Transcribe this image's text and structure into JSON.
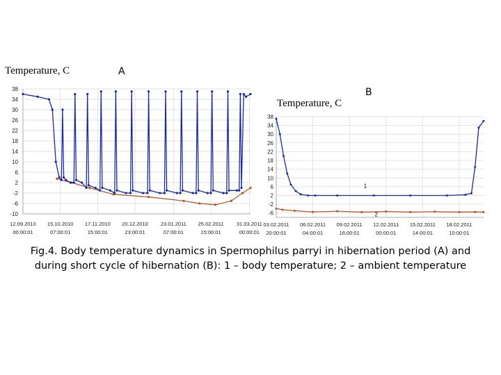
{
  "figure": {
    "ylabel_a": "Temperature, C",
    "panel_a": "A",
    "ylabel_b": "Temperature, C",
    "panel_b": "B",
    "caption": "Fig.4. Body temperature dynamics in Spermophilus parryi in hibernation period (A) and during short cycle of hibernation (B): 1 – body temperature; 2 – ambient temperature"
  },
  "colors": {
    "body": "#1a2a9c",
    "ambient": "#b0521e",
    "grid": "#d8d8d8",
    "label": "#1a1a1a"
  },
  "chart_data": [
    {
      "type": "line",
      "panel": "A",
      "ylabel": "Temperature, C",
      "ylim": [
        -10,
        38
      ],
      "yticks": [
        38,
        34,
        30,
        26,
        22,
        18,
        14,
        10,
        6,
        2,
        -2,
        -6,
        -10
      ],
      "xlim": [
        "12.09.2010",
        "01.04.2011"
      ],
      "xticks": [
        {
          "date": "12.09.2010",
          "time": "00:00:01"
        },
        {
          "date": "15.10.2010",
          "time": "07:00:01"
        },
        {
          "date": "17.11.2010",
          "time": "15:00:01"
        },
        {
          "date": "20.12.2010",
          "time": "23:00:01"
        },
        {
          "date": "23.01.2011",
          "time": "07:00:01"
        },
        {
          "date": "25.02.2011",
          "time": "15:00:01"
        },
        {
          "date": "31.03.2011",
          "time": "00:00:01"
        }
      ],
      "grid": true,
      "series": [
        {
          "key": "body",
          "x": [
            "12.09.2010",
            "25.09.2010",
            "05.10.2010",
            "08.10.2010",
            "11.10.2010",
            "14.10.2010",
            "16.10.2010",
            "17.10.2010",
            "18.10.2010",
            "20.10.2010",
            "24.10.2010",
            "27.10.2010",
            "28.10.2010",
            "29.10.2010",
            "03.11.2010",
            "07.11.2010",
            "08.11.2010",
            "09.11.2010",
            "15.11.2010",
            "19.11.2010",
            "20.11.2010",
            "21.11.2010",
            "28.11.2010",
            "02.12.2010",
            "03.12.2010",
            "04.12.2010",
            "12.12.2010",
            "16.12.2010",
            "17.12.2010",
            "18.12.2010",
            "27.12.2010",
            "31.12.2010",
            "01.01.2011",
            "02.01.2011",
            "11.01.2011",
            "15.01.2011",
            "16.01.2011",
            "17.01.2011",
            "26.01.2011",
            "29.01.2011",
            "30.01.2011",
            "31.01.2011",
            "09.02.2011",
            "12.02.2011",
            "13.02.2011",
            "14.02.2011",
            "22.02.2011",
            "25.02.2011",
            "26.02.2011",
            "27.02.2011",
            "08.03.2011",
            "11.03.2011",
            "12.03.2011",
            "13.03.2011",
            "20.03.2011",
            "22.03.2011",
            "23.03.2011",
            "24.03.2011",
            "26.03.2011",
            "28.03.2011",
            "01.04.2011"
          ],
          "y": [
            36,
            35,
            34,
            30,
            10,
            4,
            3,
            30,
            4,
            3,
            2,
            2,
            36,
            3,
            2,
            0,
            36,
            1,
            0,
            -1,
            37,
            0,
            -1,
            -2,
            37,
            -1,
            -2,
            -2,
            37,
            -1,
            -2,
            -2,
            37,
            -1,
            -2,
            -2,
            37,
            -1,
            -2,
            -2,
            37,
            -1,
            -2,
            -2,
            37,
            -1,
            -2,
            -2,
            37,
            -1,
            -2,
            -2,
            37,
            -1,
            -1,
            -1,
            36,
            0,
            36,
            35,
            36
          ]
        },
        {
          "key": "ambient",
          "x": [
            "12.10.2010",
            "25.10.2010",
            "10.11.2010",
            "01.12.2010",
            "01.01.2011",
            "01.02.2011",
            "15.02.2011",
            "01.03.2011",
            "15.03.2011",
            "25.03.2011",
            "01.04.2011"
          ],
          "y": [
            3.5,
            2,
            0,
            -2.5,
            -3.5,
            -5,
            -6,
            -6.5,
            -5,
            -2,
            0
          ]
        }
      ]
    },
    {
      "type": "line",
      "panel": "B",
      "ylabel": "Temperature, C",
      "ylim": [
        -8,
        38
      ],
      "yticks": [
        38,
        34,
        30,
        26,
        22,
        18,
        14,
        10,
        6,
        2,
        -2,
        -6
      ],
      "xlim": [
        "03.02.2011",
        "20.02.2011"
      ],
      "xticks": [
        {
          "date": "03.02.2011",
          "time": "20:00:01"
        },
        {
          "date": "06.02.2011",
          "time": "04:00:01"
        },
        {
          "date": "09.02.2011",
          "time": "16:00:01"
        },
        {
          "date": "12.02.2011",
          "time": "00:00:01"
        },
        {
          "date": "15.02.2011",
          "time": "14:00:01"
        },
        {
          "date": "18.02.2011",
          "time": "10:00:01"
        }
      ],
      "grid": true,
      "annotations": [
        "1",
        "2"
      ],
      "series": [
        {
          "key": "body",
          "x": [
            0,
            0.3,
            0.6,
            0.9,
            1.2,
            1.6,
            2.0,
            2.6,
            3.2,
            5,
            8,
            11,
            14,
            15.5,
            16.0,
            16.3,
            16.6,
            17.0
          ],
          "y": [
            37,
            30,
            20,
            12,
            7,
            4,
            2.5,
            2,
            2,
            2,
            2,
            2,
            2,
            2.3,
            3,
            15,
            33,
            36
          ]
        },
        {
          "key": "ambient",
          "x": [
            0,
            0.5,
            1.5,
            3,
            5,
            7,
            9,
            11,
            13,
            15,
            16.3,
            17.0
          ],
          "y": [
            -4,
            -4.5,
            -5,
            -5.5,
            -5.2,
            -5.6,
            -5.3,
            -5.6,
            -5.4,
            -5.6,
            -5.5,
            -5.6
          ]
        }
      ]
    }
  ]
}
